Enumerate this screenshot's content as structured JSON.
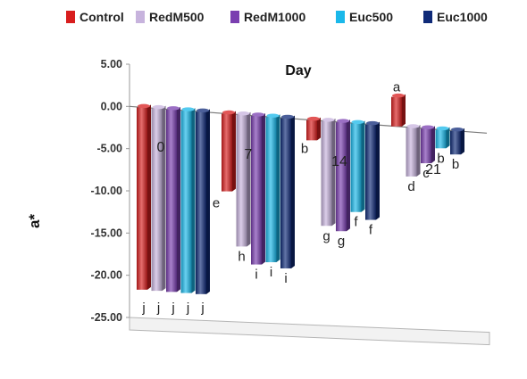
{
  "chart_data": {
    "type": "bar",
    "title": "Day",
    "ylabel": "a*",
    "xlabel": "",
    "ylim": [
      -25,
      5
    ],
    "yticks": [
      "5.00",
      "0.00",
      "-5.00",
      "-10.00",
      "-15.00",
      "-20.00",
      "-25.00"
    ],
    "legend_position": "top",
    "categories": [
      "0",
      "7",
      "14",
      "21"
    ],
    "series": [
      {
        "name": "Control",
        "color": "#d81e1e",
        "values": [
          -21.6,
          -9.2,
          -2.4,
          3.5
        ],
        "labels": [
          "j",
          "e",
          "b",
          "a"
        ]
      },
      {
        "name": "RedM500",
        "color": "#c7b3dd",
        "values": [
          -21.6,
          -15.6,
          -12.4,
          -5.8
        ],
        "labels": [
          "j",
          "h",
          "g",
          "d"
        ]
      },
      {
        "name": "RedM1000",
        "color": "#7a3fb0",
        "values": [
          -21.6,
          -17.6,
          -12.9,
          -4.1
        ],
        "labels": [
          "j",
          "i",
          "g",
          "c"
        ]
      },
      {
        "name": "Euc500",
        "color": "#1ab8ea",
        "values": [
          -21.6,
          -17.2,
          -10.5,
          -2.2
        ],
        "labels": [
          "j",
          "i",
          "f",
          "b"
        ]
      },
      {
        "name": "Euc1000",
        "color": "#0f2a78",
        "values": [
          -21.6,
          -17.8,
          -11.3,
          -2.8
        ],
        "labels": [
          "j",
          "i",
          "f",
          "b"
        ]
      }
    ]
  }
}
